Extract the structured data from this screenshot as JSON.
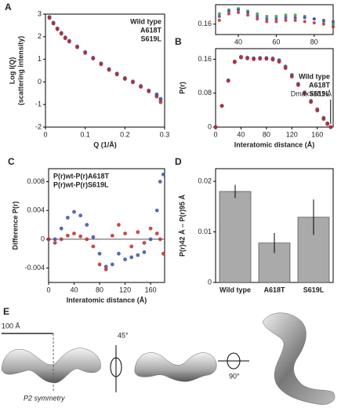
{
  "chart_data": [
    {
      "panel": "A",
      "type": "scatter",
      "xlabel": "Q (1/Å)",
      "ylabel": [
        "Log I(Q)",
        "(scattering intensity)"
      ],
      "x": [
        0.01,
        0.02,
        0.03,
        0.04,
        0.05,
        0.06,
        0.08,
        0.1,
        0.12,
        0.14,
        0.16,
        0.18,
        0.2,
        0.22,
        0.24,
        0.26,
        0.28,
        0.29
      ],
      "series": [
        {
          "name": "Wild type",
          "color": "#3f9a3f",
          "values": [
            2.85,
            2.6,
            2.35,
            2.15,
            1.95,
            1.8,
            1.55,
            1.3,
            1.05,
            0.8,
            0.55,
            0.35,
            0.15,
            0.0,
            -0.2,
            -0.4,
            -0.6,
            -0.8
          ]
        },
        {
          "name": "A618T",
          "color": "#3b4fa8",
          "values": [
            2.87,
            2.62,
            2.37,
            2.17,
            1.97,
            1.82,
            1.57,
            1.32,
            1.07,
            0.82,
            0.57,
            0.37,
            0.17,
            0.02,
            -0.18,
            -0.38,
            -0.55,
            -0.75
          ]
        },
        {
          "name": "S619L",
          "color": "#c0282d",
          "values": [
            2.83,
            2.58,
            2.33,
            2.13,
            1.93,
            1.78,
            1.53,
            1.28,
            1.03,
            0.78,
            0.53,
            0.33,
            0.13,
            -0.02,
            -0.22,
            -0.42,
            -0.65,
            -0.9
          ]
        }
      ],
      "xlim": [
        0,
        0.3
      ],
      "xticks": [
        0,
        0.1,
        0.2,
        0.3
      ],
      "ylim": [
        -2,
        3
      ],
      "yticks": [
        -2,
        -1,
        0,
        1,
        2,
        3
      ],
      "legend": "upper right"
    },
    {
      "panel": "B",
      "type": "scatter",
      "xlabel": "Interatomic distance (Å)",
      "ylabel": [
        "P(r)"
      ],
      "annotation": "Dmax=181 Å",
      "x": [
        0,
        10,
        20,
        30,
        40,
        50,
        60,
        70,
        80,
        90,
        100,
        110,
        120,
        130,
        140,
        150,
        160,
        170,
        176,
        181
      ],
      "series": [
        {
          "name": "Wild type",
          "color": "#3f9a3f",
          "values": [
            0,
            0.05,
            0.11,
            0.155,
            0.166,
            0.164,
            0.162,
            0.163,
            0.162,
            0.16,
            0.155,
            0.14,
            0.12,
            0.1,
            0.08,
            0.06,
            0.04,
            0.02,
            0.008,
            0
          ]
        },
        {
          "name": "A618T",
          "color": "#3b4fa8",
          "values": [
            0,
            0.05,
            0.11,
            0.154,
            0.165,
            0.163,
            0.162,
            0.163,
            0.163,
            0.162,
            0.158,
            0.143,
            0.123,
            0.102,
            0.082,
            0.062,
            0.042,
            0.022,
            0.009,
            0
          ]
        },
        {
          "name": "S619L",
          "color": "#c0282d",
          "values": [
            0,
            0.05,
            0.109,
            0.153,
            0.164,
            0.162,
            0.16,
            0.161,
            0.161,
            0.159,
            0.154,
            0.139,
            0.119,
            0.099,
            0.079,
            0.059,
            0.039,
            0.019,
            0.007,
            0
          ]
        }
      ],
      "xlim": [
        0,
        185
      ],
      "xticks": [
        0,
        40,
        80,
        120,
        160
      ],
      "ylim": [
        0,
        0.185
      ],
      "yticks": [
        0,
        0.08,
        0.16
      ],
      "legend": "center right"
    },
    {
      "type": "scatter",
      "x": [
        30,
        35,
        40,
        45,
        50,
        55,
        60,
        65,
        70,
        75,
        80,
        85,
        90
      ],
      "series": [
        {
          "color": "#3f9a3f",
          "values": [
            0.168,
            0.171,
            0.172,
            0.17,
            0.168,
            0.166,
            0.166,
            0.167,
            0.167,
            0.166,
            0.164,
            0.162,
            0.16
          ]
        },
        {
          "color": "#3b4fa8",
          "values": [
            0.166,
            0.17,
            0.171,
            0.169,
            0.166,
            0.164,
            0.164,
            0.165,
            0.165,
            0.165,
            0.164,
            0.163,
            0.162
          ]
        },
        {
          "color": "#c0282d",
          "values": [
            0.163,
            0.168,
            0.169,
            0.167,
            0.164,
            0.162,
            0.162,
            0.163,
            0.163,
            0.162,
            0.161,
            0.16,
            0.158
          ]
        }
      ],
      "xlim": [
        28,
        90
      ],
      "xticks": [
        40,
        60,
        80
      ],
      "ylim": [
        0.152,
        0.175
      ],
      "yticks": [
        0.16
      ]
    },
    {
      "panel": "C",
      "type": "scatter",
      "xlabel": "Interatomic distance (Å)",
      "ylabel": [
        "Difference P(r)"
      ],
      "x": [
        0,
        10,
        20,
        30,
        40,
        50,
        60,
        70,
        80,
        90,
        100,
        110,
        120,
        130,
        140,
        150,
        160,
        170,
        175,
        180
      ],
      "series": [
        {
          "name": "P(r)wt-P(r)A618T",
          "color": "#3b4fa8",
          "values": [
            0,
            0,
            0.0015,
            0.003,
            0.0038,
            0.0033,
            0.002,
            0.0003,
            -0.002,
            -0.0038,
            -0.0035,
            -0.002,
            -0.0028,
            -0.0025,
            -0.0022,
            -0.0018,
            0,
            0.004,
            0.008,
            0.009
          ]
        },
        {
          "name": "P(r)wt-P(r)S619L",
          "color": "#c0282d",
          "values": [
            0,
            -0.0005,
            0,
            0.0005,
            0.0008,
            0.0004,
            0,
            -0.001,
            -0.0035,
            -0.0042,
            0.0005,
            0.002,
            0.0008,
            -0.001,
            0.001,
            -0.0005,
            0.0015,
            0.0008,
            0,
            -0.002
          ]
        }
      ],
      "xlim": [
        0,
        182
      ],
      "xticks": [
        0,
        40,
        80,
        120,
        160
      ],
      "ylim": [
        -0.006,
        0.0098
      ],
      "yticks": [
        -0.004,
        0,
        0.004,
        0.008
      ],
      "zero_line": true,
      "legend": "upper left"
    },
    {
      "panel": "D",
      "type": "bar",
      "ylabel": [
        "P(r)42 Å – P(r)95 Å"
      ],
      "color": "#aaaaaa",
      "categories": [
        "Wild type",
        "A618T",
        "S619L"
      ],
      "values": [
        0.018,
        0.0078,
        0.0129
      ],
      "errors": [
        0.0013,
        0.002,
        0.0035
      ],
      "ylim": [
        0,
        0.0225
      ],
      "yticks": [
        0,
        0.01,
        0.02
      ]
    }
  ],
  "panel_e": {
    "panel": "E",
    "scale": "100 Å",
    "rotation1": "45°",
    "rotation2": "90°",
    "symmetry": "P2 symmetry"
  }
}
